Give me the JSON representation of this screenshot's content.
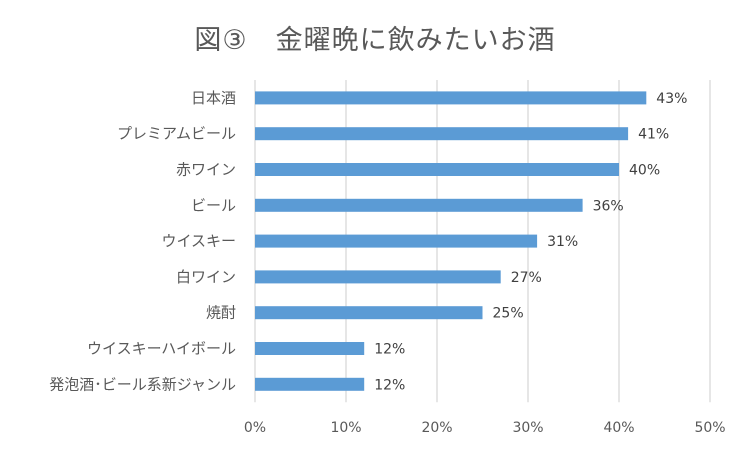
{
  "chart_data": {
    "type": "bar",
    "orientation": "horizontal",
    "title": "図③　金曜晩に飲みたいお酒",
    "categories": [
      "日本酒",
      "プレミアムビール",
      "赤ワイン",
      "ビール",
      "ウイスキー",
      "白ワイン",
      "焼酎",
      "ウイスキーハイボール",
      "発泡酒･ビール系新ジャンル"
    ],
    "values": [
      43,
      41,
      40,
      36,
      31,
      27,
      25,
      12,
      12
    ],
    "data_labels": [
      "43%",
      "41%",
      "40%",
      "36%",
      "31%",
      "27%",
      "25%",
      "12%",
      "12%"
    ],
    "xlim": [
      0,
      50
    ],
    "x_ticks": [
      "0%",
      "10%",
      "20%",
      "30%",
      "40%",
      "50%"
    ],
    "grid": "vertical",
    "bar_color": "#5B9BD5",
    "xlabel": "",
    "ylabel": ""
  }
}
